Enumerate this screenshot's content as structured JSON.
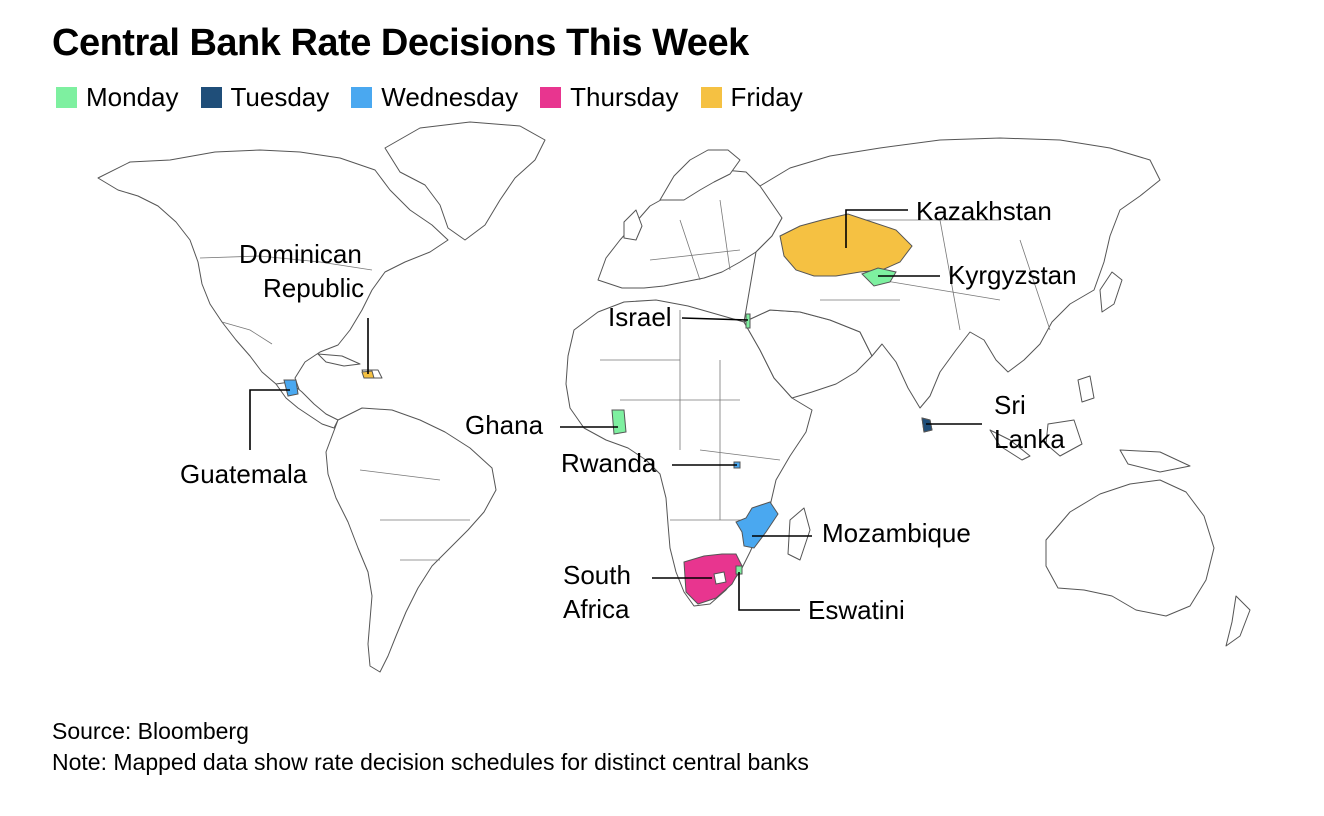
{
  "title": "Central Bank Rate Decisions This Week",
  "legend": [
    {
      "label": "Monday",
      "color": "#7ef0a0"
    },
    {
      "label": "Tuesday",
      "color": "#1f4e79"
    },
    {
      "label": "Wednesday",
      "color": "#4aa8f0"
    },
    {
      "label": "Thursday",
      "color": "#e8358f"
    },
    {
      "label": "Friday",
      "color": "#f5c142"
    }
  ],
  "countries": {
    "kazakhstan": {
      "line1": "Kazakhstan",
      "day": "Friday"
    },
    "kyrgyzstan": {
      "line1": "Kyrgyzstan",
      "day": "Monday"
    },
    "israel": {
      "line1": "Israel",
      "day": "Monday"
    },
    "dominican_republic": {
      "line1": "Dominican",
      "line2": "Republic",
      "day": "Friday"
    },
    "guatemala": {
      "line1": "Guatemala",
      "day": "Wednesday"
    },
    "ghana": {
      "line1": "Ghana",
      "day": "Monday"
    },
    "rwanda": {
      "line1": "Rwanda",
      "day": "Tuesday"
    },
    "sri_lanka": {
      "line1": "Sri",
      "line2": "Lanka",
      "day": "Tuesday"
    },
    "mozambique": {
      "line1": "Mozambique",
      "day": "Wednesday"
    },
    "south_africa": {
      "line1": "South",
      "line2": "Africa",
      "day": "Thursday"
    },
    "eswatini": {
      "line1": "Eswatini",
      "day": "Monday"
    }
  },
  "footer": {
    "source": "Source: Bloomberg",
    "note": "Note: Mapped data show rate decision schedules for distinct central banks"
  }
}
